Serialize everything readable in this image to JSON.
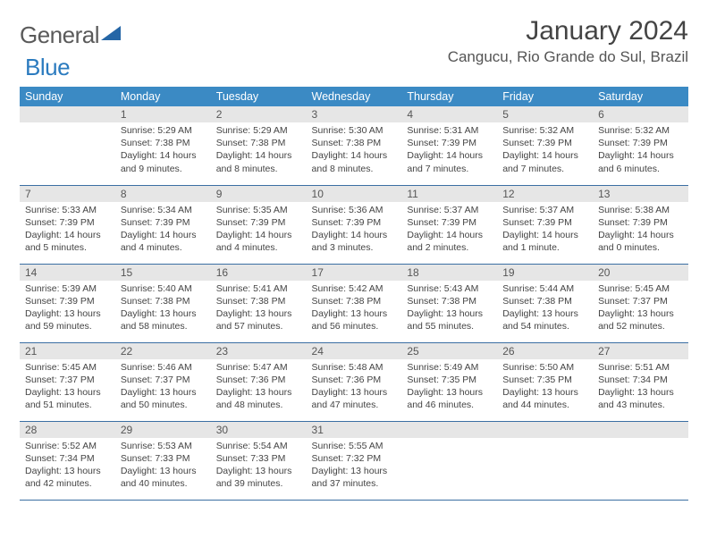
{
  "logo": {
    "text_gray": "General",
    "text_blue": "Blue"
  },
  "title": "January 2024",
  "location": "Cangucu, Rio Grande do Sul, Brazil",
  "colors": {
    "header_bg": "#3b8ac4",
    "header_fg": "#ffffff",
    "daynum_bg": "#e6e6e6",
    "daynum_fg": "#565656",
    "rule": "#3b6fa3",
    "text": "#444444",
    "logo_gray": "#5a5a5a",
    "logo_blue": "#2b7bbf",
    "logo_shape": "#2566a6"
  },
  "day_headers": [
    "Sunday",
    "Monday",
    "Tuesday",
    "Wednesday",
    "Thursday",
    "Friday",
    "Saturday"
  ],
  "weeks": [
    [
      null,
      {
        "n": "1",
        "sr": "5:29 AM",
        "ss": "7:38 PM",
        "dl": "14 hours and 9 minutes."
      },
      {
        "n": "2",
        "sr": "5:29 AM",
        "ss": "7:38 PM",
        "dl": "14 hours and 8 minutes."
      },
      {
        "n": "3",
        "sr": "5:30 AM",
        "ss": "7:38 PM",
        "dl": "14 hours and 8 minutes."
      },
      {
        "n": "4",
        "sr": "5:31 AM",
        "ss": "7:39 PM",
        "dl": "14 hours and 7 minutes."
      },
      {
        "n": "5",
        "sr": "5:32 AM",
        "ss": "7:39 PM",
        "dl": "14 hours and 7 minutes."
      },
      {
        "n": "6",
        "sr": "5:32 AM",
        "ss": "7:39 PM",
        "dl": "14 hours and 6 minutes."
      }
    ],
    [
      {
        "n": "7",
        "sr": "5:33 AM",
        "ss": "7:39 PM",
        "dl": "14 hours and 5 minutes."
      },
      {
        "n": "8",
        "sr": "5:34 AM",
        "ss": "7:39 PM",
        "dl": "14 hours and 4 minutes."
      },
      {
        "n": "9",
        "sr": "5:35 AM",
        "ss": "7:39 PM",
        "dl": "14 hours and 4 minutes."
      },
      {
        "n": "10",
        "sr": "5:36 AM",
        "ss": "7:39 PM",
        "dl": "14 hours and 3 minutes."
      },
      {
        "n": "11",
        "sr": "5:37 AM",
        "ss": "7:39 PM",
        "dl": "14 hours and 2 minutes."
      },
      {
        "n": "12",
        "sr": "5:37 AM",
        "ss": "7:39 PM",
        "dl": "14 hours and 1 minute."
      },
      {
        "n": "13",
        "sr": "5:38 AM",
        "ss": "7:39 PM",
        "dl": "14 hours and 0 minutes."
      }
    ],
    [
      {
        "n": "14",
        "sr": "5:39 AM",
        "ss": "7:39 PM",
        "dl": "13 hours and 59 minutes."
      },
      {
        "n": "15",
        "sr": "5:40 AM",
        "ss": "7:38 PM",
        "dl": "13 hours and 58 minutes."
      },
      {
        "n": "16",
        "sr": "5:41 AM",
        "ss": "7:38 PM",
        "dl": "13 hours and 57 minutes."
      },
      {
        "n": "17",
        "sr": "5:42 AM",
        "ss": "7:38 PM",
        "dl": "13 hours and 56 minutes."
      },
      {
        "n": "18",
        "sr": "5:43 AM",
        "ss": "7:38 PM",
        "dl": "13 hours and 55 minutes."
      },
      {
        "n": "19",
        "sr": "5:44 AM",
        "ss": "7:38 PM",
        "dl": "13 hours and 54 minutes."
      },
      {
        "n": "20",
        "sr": "5:45 AM",
        "ss": "7:37 PM",
        "dl": "13 hours and 52 minutes."
      }
    ],
    [
      {
        "n": "21",
        "sr": "5:45 AM",
        "ss": "7:37 PM",
        "dl": "13 hours and 51 minutes."
      },
      {
        "n": "22",
        "sr": "5:46 AM",
        "ss": "7:37 PM",
        "dl": "13 hours and 50 minutes."
      },
      {
        "n": "23",
        "sr": "5:47 AM",
        "ss": "7:36 PM",
        "dl": "13 hours and 48 minutes."
      },
      {
        "n": "24",
        "sr": "5:48 AM",
        "ss": "7:36 PM",
        "dl": "13 hours and 47 minutes."
      },
      {
        "n": "25",
        "sr": "5:49 AM",
        "ss": "7:35 PM",
        "dl": "13 hours and 46 minutes."
      },
      {
        "n": "26",
        "sr": "5:50 AM",
        "ss": "7:35 PM",
        "dl": "13 hours and 44 minutes."
      },
      {
        "n": "27",
        "sr": "5:51 AM",
        "ss": "7:34 PM",
        "dl": "13 hours and 43 minutes."
      }
    ],
    [
      {
        "n": "28",
        "sr": "5:52 AM",
        "ss": "7:34 PM",
        "dl": "13 hours and 42 minutes."
      },
      {
        "n": "29",
        "sr": "5:53 AM",
        "ss": "7:33 PM",
        "dl": "13 hours and 40 minutes."
      },
      {
        "n": "30",
        "sr": "5:54 AM",
        "ss": "7:33 PM",
        "dl": "13 hours and 39 minutes."
      },
      {
        "n": "31",
        "sr": "5:55 AM",
        "ss": "7:32 PM",
        "dl": "13 hours and 37 minutes."
      },
      null,
      null,
      null
    ]
  ],
  "labels": {
    "sunrise": "Sunrise:",
    "sunset": "Sunset:",
    "daylight": "Daylight:"
  }
}
